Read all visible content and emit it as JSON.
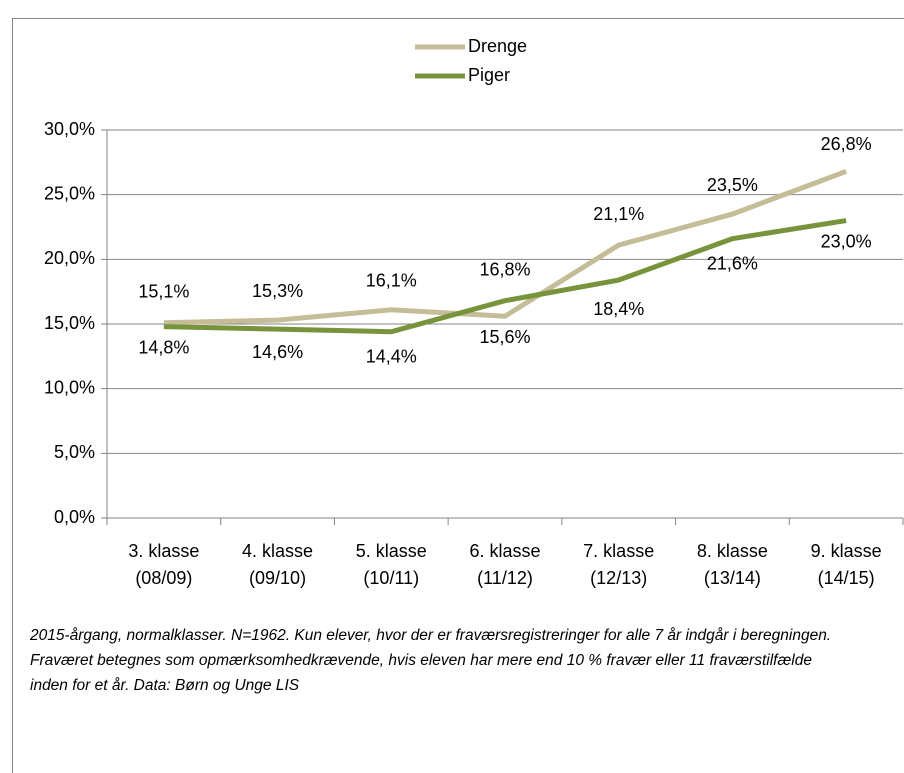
{
  "chart_data": {
    "type": "line",
    "categories": [
      "3. klasse (08/09)",
      "4. klasse (09/10)",
      "5. klasse (10/11)",
      "6. klasse (11/12)",
      "7. klasse (12/13)",
      "8. klasse (13/14)",
      "9. klasse (14/15)"
    ],
    "series": [
      {
        "name": "Drenge",
        "color": "#c4bd97",
        "values": [
          15.1,
          15.3,
          16.1,
          15.6,
          21.1,
          23.5,
          26.8
        ],
        "value_labels": [
          "15,1%",
          "15,3%",
          "16,1%",
          "15,6%",
          "21,1%",
          "23,5%",
          "26,8%"
        ]
      },
      {
        "name": "Piger",
        "color": "#77933c",
        "values": [
          14.8,
          14.6,
          14.4,
          16.8,
          18.4,
          21.6,
          23.0
        ],
        "value_labels": [
          "14,8%",
          "14,6%",
          "14,4%",
          "16,8%",
          "18,4%",
          "21,6%",
          "23,0%"
        ]
      }
    ],
    "ylim": [
      0,
      30
    ],
    "yticks": [
      {
        "value": 0,
        "label": "0,0%"
      },
      {
        "value": 5,
        "label": "5,0%"
      },
      {
        "value": 10,
        "label": "10,0%"
      },
      {
        "value": 15,
        "label": "15,0%"
      },
      {
        "value": 20,
        "label": "20,0%"
      },
      {
        "value": 25,
        "label": "25,0%"
      },
      {
        "value": 30,
        "label": "30,0%"
      }
    ],
    "grid": true,
    "legend": "top",
    "note": "2015-årgang, normalklasser. N=1962. Kun elever, hvor der er fraværsregistreringer for alle 7 år indgår i beregningen. Fraværet betegnes som opmærksomhedkrævende, hvis eleven har mere end 10 % fravær eller 11 fraværstilfælde inden for et år. Data: Børn og Unge LIS"
  }
}
